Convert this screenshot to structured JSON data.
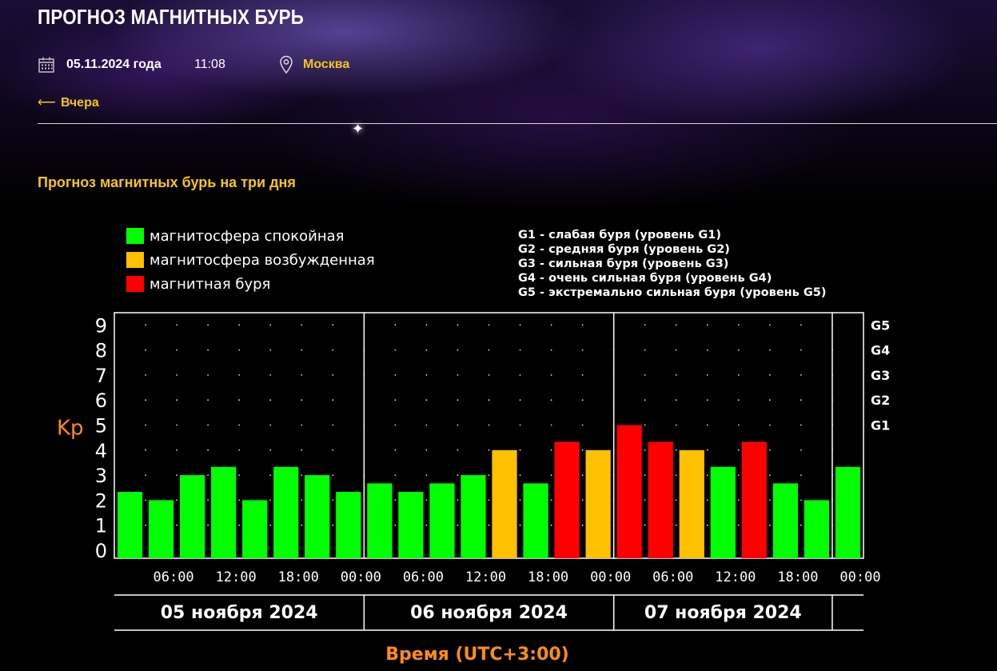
{
  "header": {
    "title": "ПРОГНОЗ МАГНИТНЫХ БУРЬ",
    "date": "05.11.2024 года",
    "time": "11:08",
    "city": "Москва",
    "back_label": "Вчера",
    "section_title": "Прогноз магнитных бурь на три дня"
  },
  "icons": {
    "calendar": "calendar-icon",
    "location": "map-pin-icon",
    "back": "arrow-left-icon"
  },
  "colors": {
    "accent": "#f5c518",
    "quiet": "#00ff00",
    "active": "#ffc000",
    "storm": "#ff0000",
    "axis_title": "#ff8c1a"
  },
  "chart_data": {
    "type": "bar",
    "ylabel": "Kp",
    "xlabel": "Время (UTC+3:00)",
    "ylim": [
      0,
      9
    ],
    "yticks": [
      "0",
      "1",
      "2",
      "3",
      "4",
      "5",
      "6",
      "7",
      "8",
      "9"
    ],
    "right_axis_labels": [
      {
        "label": "G1",
        "kp": 5
      },
      {
        "label": "G2",
        "kp": 6
      },
      {
        "label": "G3",
        "kp": 7
      },
      {
        "label": "G4",
        "kp": 8
      },
      {
        "label": "G5",
        "kp": 9
      }
    ],
    "legend": [
      {
        "label": "магнитосфера спокойная",
        "level": "quiet"
      },
      {
        "label": "магнитосфера возбужденная",
        "level": "active"
      },
      {
        "label": "магнитная буря",
        "level": "storm"
      }
    ],
    "g_legend": [
      "G1 - слабая буря (уровень G1)",
      "G2 - средняя буря (уровень G2)",
      "G3 - сильная буря (уровень G3)",
      "G4 - очень сильная буря (уровень G4)",
      "G5 - экстремально сильная буря (уровень G5)"
    ],
    "x_tick_labels": [
      "06:00",
      "12:00",
      "18:00",
      "00:00",
      "06:00",
      "12:00",
      "18:00",
      "00:00",
      "06:00",
      "12:00",
      "18:00",
      "00:00"
    ],
    "days": [
      "05 ноября 2024",
      "06 ноября 2024",
      "07 ноября 2024"
    ],
    "grid": "dotted",
    "values": [
      2.33,
      2,
      3,
      3.33,
      2,
      3.33,
      3,
      2.33,
      2.67,
      2.33,
      2.67,
      3,
      4,
      2.67,
      4.33,
      4,
      5,
      4.33,
      4,
      3.33,
      4.33,
      2.67,
      2,
      3.33
    ],
    "levels": [
      "quiet",
      "quiet",
      "quiet",
      "quiet",
      "quiet",
      "quiet",
      "quiet",
      "quiet",
      "quiet",
      "quiet",
      "quiet",
      "quiet",
      "active",
      "quiet",
      "storm",
      "active",
      "storm",
      "storm",
      "active",
      "quiet",
      "storm",
      "quiet",
      "quiet",
      "quiet"
    ]
  }
}
